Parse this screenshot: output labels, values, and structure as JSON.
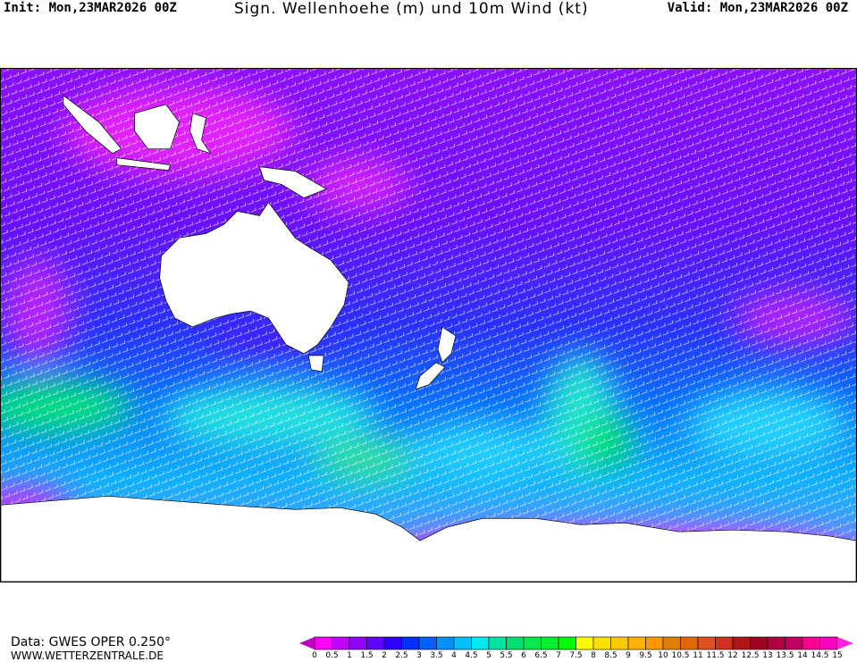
{
  "header": {
    "init": "Init: Mon,23MAR2026 00Z",
    "title": "Sign. Wellenhoehe (m) und 10m Wind (kt)",
    "valid": "Valid: Mon,23MAR2026 00Z"
  },
  "footer": {
    "data_source": "Data: GWES OPER 0.250°",
    "website": "WWW.WETTERZENTRALE.DE"
  },
  "map": {
    "region": "Indian Ocean, Australia, South Pacific, Southern Ocean",
    "land_color": "#ffffff",
    "wind_barb_color": "#ffffff"
  },
  "colorbar": {
    "unit": "m",
    "labels": [
      "0",
      "0.5",
      "1",
      "1.5",
      "2",
      "2.5",
      "3",
      "3.5",
      "4",
      "4.5",
      "5",
      "5.5",
      "6",
      "6.5",
      "7",
      "7.5",
      "8",
      "8.5",
      "9",
      "9.5",
      "10",
      "10.5",
      "11",
      "11.5",
      "12",
      "12.5",
      "13",
      "13.5",
      "14",
      "14.5",
      "15"
    ],
    "colors": [
      "#ff00ff",
      "#c000ff",
      "#9000ff",
      "#6000ff",
      "#3000ff",
      "#0030ff",
      "#0060ff",
      "#0090ff",
      "#00c0ff",
      "#00e8f0",
      "#00e0a0",
      "#00e070",
      "#00e850",
      "#00f030",
      "#00ff00",
      "#ffff00",
      "#ffe000",
      "#ffc800",
      "#ffb000",
      "#ff9800",
      "#e08000",
      "#e06800",
      "#e05020",
      "#d03020",
      "#b01818",
      "#a00020",
      "#b00040",
      "#c00060",
      "#ff0090",
      "#ff00c0"
    ],
    "under_color": "#c000c0",
    "over_color": "#ff20e0"
  }
}
